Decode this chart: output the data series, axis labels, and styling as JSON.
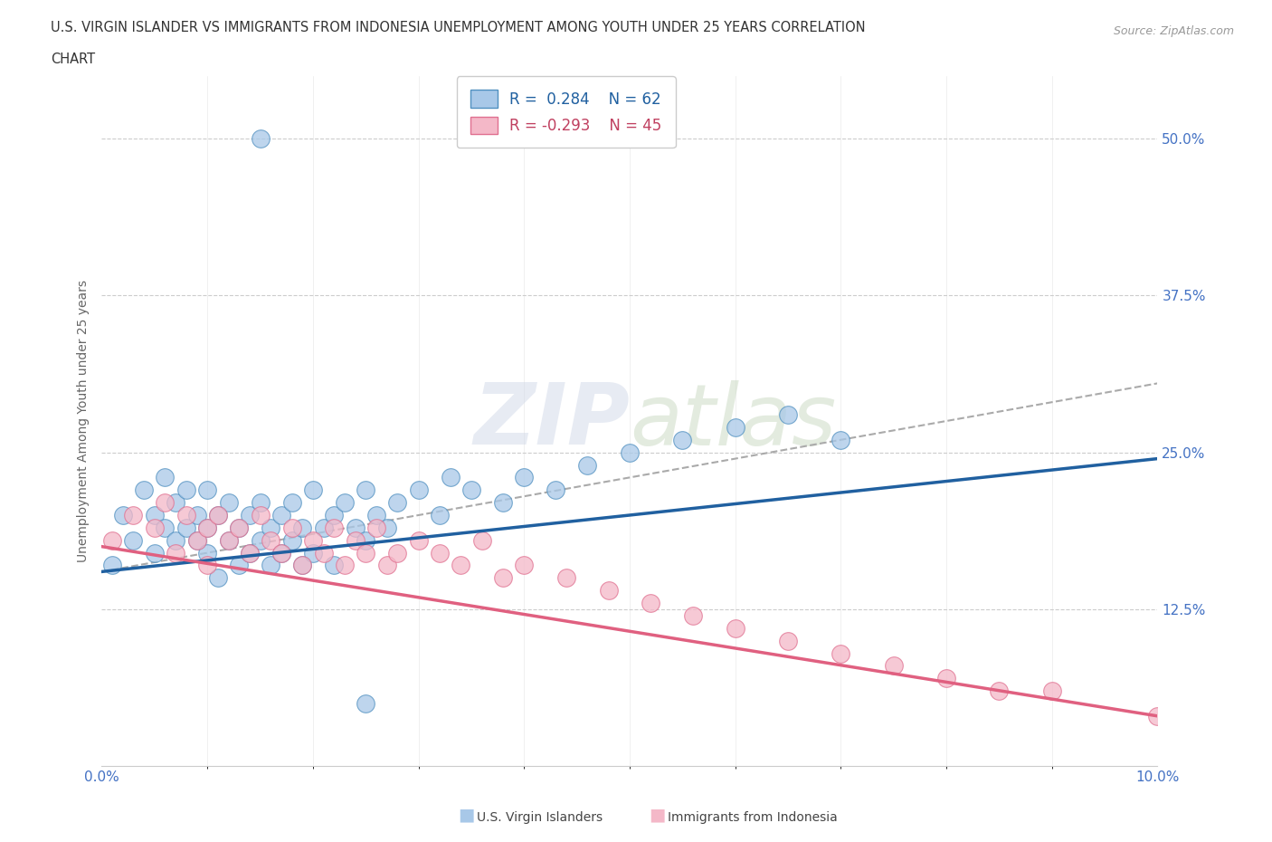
{
  "title_line1": "U.S. VIRGIN ISLANDER VS IMMIGRANTS FROM INDONESIA UNEMPLOYMENT AMONG YOUTH UNDER 25 YEARS CORRELATION",
  "title_line2": "CHART",
  "source_text": "Source: ZipAtlas.com",
  "ylabel": "Unemployment Among Youth under 25 years",
  "xlim": [
    0.0,
    0.1
  ],
  "ylim": [
    0.0,
    0.55
  ],
  "xtick_labels": [
    "0.0%",
    "10.0%"
  ],
  "xtick_positions": [
    0.0,
    0.1
  ],
  "ytick_labels": [
    "12.5%",
    "25.0%",
    "37.5%",
    "50.0%"
  ],
  "ytick_positions": [
    0.125,
    0.25,
    0.375,
    0.5
  ],
  "legend_r1": "R =  0.284",
  "legend_n1": "N = 62",
  "legend_r2": "R = -0.293",
  "legend_n2": "N = 45",
  "color_blue": "#a8c8e8",
  "color_pink": "#f4b8c8",
  "color_blue_edge": "#5090c0",
  "color_pink_edge": "#e07090",
  "color_blue_line": "#2060a0",
  "color_pink_line": "#e06080",
  "color_blue_text": "#2060a0",
  "color_gray_line": "#aaaaaa",
  "blue_scatter_x": [
    0.001,
    0.002,
    0.003,
    0.004,
    0.005,
    0.005,
    0.006,
    0.006,
    0.007,
    0.007,
    0.008,
    0.008,
    0.009,
    0.009,
    0.01,
    0.01,
    0.01,
    0.011,
    0.011,
    0.012,
    0.012,
    0.013,
    0.013,
    0.014,
    0.014,
    0.015,
    0.015,
    0.016,
    0.016,
    0.017,
    0.017,
    0.018,
    0.018,
    0.019,
    0.019,
    0.02,
    0.02,
    0.021,
    0.022,
    0.022,
    0.023,
    0.024,
    0.025,
    0.025,
    0.026,
    0.027,
    0.028,
    0.03,
    0.032,
    0.033,
    0.035,
    0.038,
    0.04,
    0.043,
    0.046,
    0.05,
    0.055,
    0.06,
    0.065,
    0.07,
    0.015,
    0.025
  ],
  "blue_scatter_y": [
    0.16,
    0.2,
    0.18,
    0.22,
    0.17,
    0.2,
    0.19,
    0.23,
    0.18,
    0.21,
    0.19,
    0.22,
    0.18,
    0.2,
    0.17,
    0.19,
    0.22,
    0.2,
    0.15,
    0.21,
    0.18,
    0.19,
    0.16,
    0.2,
    0.17,
    0.21,
    0.18,
    0.19,
    0.16,
    0.2,
    0.17,
    0.21,
    0.18,
    0.19,
    0.16,
    0.22,
    0.17,
    0.19,
    0.2,
    0.16,
    0.21,
    0.19,
    0.18,
    0.22,
    0.2,
    0.19,
    0.21,
    0.22,
    0.2,
    0.23,
    0.22,
    0.21,
    0.23,
    0.22,
    0.24,
    0.25,
    0.26,
    0.27,
    0.28,
    0.26,
    0.5,
    0.05
  ],
  "pink_scatter_x": [
    0.001,
    0.003,
    0.005,
    0.006,
    0.007,
    0.008,
    0.009,
    0.01,
    0.01,
    0.011,
    0.012,
    0.013,
    0.014,
    0.015,
    0.016,
    0.017,
    0.018,
    0.019,
    0.02,
    0.021,
    0.022,
    0.023,
    0.024,
    0.025,
    0.026,
    0.027,
    0.028,
    0.03,
    0.032,
    0.034,
    0.036,
    0.038,
    0.04,
    0.044,
    0.048,
    0.052,
    0.056,
    0.06,
    0.065,
    0.07,
    0.075,
    0.08,
    0.085,
    0.09,
    0.1
  ],
  "pink_scatter_y": [
    0.18,
    0.2,
    0.19,
    0.21,
    0.17,
    0.2,
    0.18,
    0.19,
    0.16,
    0.2,
    0.18,
    0.19,
    0.17,
    0.2,
    0.18,
    0.17,
    0.19,
    0.16,
    0.18,
    0.17,
    0.19,
    0.16,
    0.18,
    0.17,
    0.19,
    0.16,
    0.17,
    0.18,
    0.17,
    0.16,
    0.18,
    0.15,
    0.16,
    0.15,
    0.14,
    0.13,
    0.12,
    0.11,
    0.1,
    0.09,
    0.08,
    0.07,
    0.06,
    0.06,
    0.04
  ],
  "blue_line_x": [
    0.0,
    0.1
  ],
  "blue_line_y": [
    0.155,
    0.245
  ],
  "pink_line_x": [
    0.0,
    0.1
  ],
  "pink_line_y": [
    0.175,
    0.04
  ],
  "gray_line_x": [
    0.0,
    0.1
  ],
  "gray_line_y": [
    0.155,
    0.305
  ],
  "background_color": "#ffffff",
  "grid_color": "#cccccc"
}
